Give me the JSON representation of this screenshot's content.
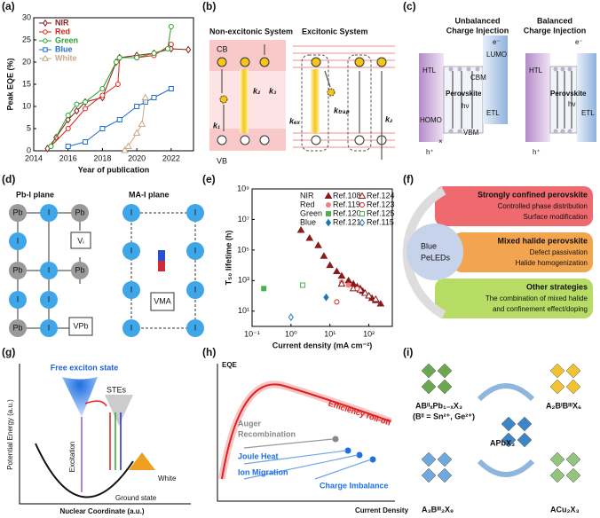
{
  "panel_labels": [
    "(a)",
    "(b)",
    "(c)",
    "(d)",
    "(e)",
    "(f)",
    "(g)",
    "(h)",
    "(i)"
  ],
  "chart_data": [
    {
      "type": "line",
      "xlabel": "Year of publication",
      "ylabel": "Peak EQE (%)",
      "xlim": [
        2014,
        2023.3
      ],
      "xticks": [
        2014,
        2016,
        2018,
        2020,
        2022
      ],
      "ylim": [
        0,
        30
      ],
      "yticks": [
        0,
        5,
        10,
        15,
        20,
        25,
        30
      ],
      "legend": "upper left",
      "series": [
        {
          "name": "NIR",
          "color": "#8b1a1a",
          "marker": "diamond",
          "filled": false,
          "x": [
            2014.8,
            2015.3,
            2016,
            2016.5,
            2017,
            2018,
            2018.8,
            2019,
            2020,
            2021,
            2022,
            2023
          ],
          "values": [
            0.5,
            3,
            7,
            9,
            11,
            12,
            20,
            21,
            21.5,
            22,
            23,
            22.8
          ]
        },
        {
          "name": "Red",
          "color": "#e0201b",
          "marker": "circle",
          "filled": false,
          "x": [
            2015,
            2016,
            2017,
            2018,
            2018.9,
            2019,
            2020,
            2021,
            2022
          ],
          "values": [
            1,
            5,
            9.5,
            12.5,
            15,
            21,
            21,
            21.5,
            24
          ]
        },
        {
          "name": "Green",
          "color": "#2ca02c",
          "marker": "circle",
          "filled": false,
          "x": [
            2015,
            2016,
            2016.5,
            2017,
            2018,
            2018.8,
            2019,
            2020,
            2021,
            2021.8,
            2022
          ],
          "values": [
            1,
            8,
            10.5,
            11,
            14,
            20,
            21,
            21,
            22,
            23,
            28
          ]
        },
        {
          "name": "Blue",
          "color": "#1f6fd1",
          "marker": "square",
          "filled": false,
          "x": [
            2016,
            2017,
            2018,
            2019,
            2020,
            2020.5,
            2021,
            2022
          ],
          "values": [
            1,
            2,
            5,
            7,
            10,
            11,
            12,
            14
          ]
        },
        {
          "name": "White",
          "color": "#c8a887",
          "marker": "triangle",
          "filled": false,
          "x": [
            2019.3,
            2019.5,
            2020,
            2020.3,
            2020.5
          ],
          "values": [
            0.1,
            1,
            4,
            6,
            12
          ]
        }
      ]
    },
    {
      "type": "scatter",
      "xlabel": "Current density (mA cm⁻²)",
      "ylabel": "T₅₀ lifetime (h)",
      "xlog": true,
      "ylog": true,
      "xlim": [
        0.1,
        400
      ],
      "xticks": [
        {
          "value": 0.1,
          "label": "10⁻¹"
        },
        {
          "value": 1,
          "label": "10⁰"
        },
        {
          "value": 10,
          "label": "10¹"
        },
        {
          "value": 100,
          "label": "10²"
        }
      ],
      "ylim": [
        1,
        1000000000
      ],
      "yticks": [
        {
          "value": 10,
          "label": "10¹"
        },
        {
          "value": 1000,
          "label": "10³"
        },
        {
          "value": 100000,
          "label": "10⁵"
        },
        {
          "value": 10000000,
          "label": "10⁷"
        },
        {
          "value": 1000000000,
          "label": "10⁹"
        }
      ],
      "legend": "upper right",
      "legend_groups": [
        "NIR",
        "Red",
        "Green",
        "Blue"
      ],
      "series": [
        {
          "name": "Ref.108",
          "color": "#8b1a1a",
          "marker": "triangle",
          "filled": true,
          "x": [
            1.8,
            3,
            5,
            7,
            10,
            15,
            20,
            30,
            40,
            50,
            60,
            70,
            80,
            100,
            120,
            150,
            200
          ],
          "values": [
            2000000,
            600000,
            200000,
            40000,
            10000,
            4000,
            2000,
            1000,
            600,
            400,
            300,
            200,
            150,
            100,
            70,
            50,
            30
          ]
        },
        {
          "name": "Ref.119",
          "color": "#f08080",
          "marker": "circle",
          "filled": true,
          "x": [
            20,
            30
          ],
          "values": [
            800,
            500
          ]
        },
        {
          "name": "Ref.120",
          "color": "#4caf50",
          "marker": "square",
          "filled": true,
          "x": [
            0.2
          ],
          "values": [
            300
          ]
        },
        {
          "name": "Ref.121",
          "color": "#1f77b4",
          "marker": "diamond",
          "filled": true,
          "x": [
            8
          ],
          "values": [
            80
          ]
        },
        {
          "name": "Ref.124",
          "color": "#8b1a1a",
          "marker": "triangle",
          "filled": false,
          "x": [
            20,
            40,
            60,
            80,
            100,
            150
          ],
          "values": [
            600,
            300,
            250,
            150,
            100,
            60
          ]
        },
        {
          "name": "Ref.123",
          "color": "#e0201b",
          "marker": "circle",
          "filled": false,
          "x": [
            15,
            50
          ],
          "values": [
            40,
            300
          ]
        },
        {
          "name": "Ref.125",
          "color": "#4caf50",
          "marker": "square",
          "filled": false,
          "x": [
            2
          ],
          "values": [
            500
          ]
        },
        {
          "name": "Ref.115",
          "color": "#1f77b4",
          "marker": "diamond",
          "filled": false,
          "x": [
            1
          ],
          "values": [
            4
          ]
        }
      ]
    }
  ],
  "panels": {
    "b": {
      "left_title": "Non-excitonic System",
      "right_title": "Excitonic System",
      "cb": "CB",
      "vb": "VB",
      "k1": "k₁",
      "k2": "k₂",
      "k3": "k₃",
      "kex": "kₑₓ",
      "ktrap": "kₜᵣₐₚ",
      "k2r": "k₂"
    },
    "c": {
      "title_left": [
        "Unbalanced",
        "Charge Injection"
      ],
      "title_right": [
        "Balanced",
        "Charge Injection"
      ],
      "htl": "HTL",
      "lumo": "LUMO",
      "cbm": "CBM",
      "e": "e⁻",
      "perovskite": "Perovskite",
      "hv": "hν",
      "homo": "HOMO",
      "vbm": "VBM",
      "etl": "ETL",
      "h": "h⁺",
      "x": "×",
      "htl2": "HTL",
      "e2": "e⁻",
      "perovskite2": "Perovskite",
      "hv2": "hν",
      "etl2": "ETL",
      "h2": "h⁺"
    },
    "d": {
      "left_title": "Pb-I plane",
      "right_title": "MA-I plane",
      "pb": [
        "Pb",
        "I",
        "Pb",
        "I",
        "Pb",
        "I",
        "Pb",
        "I",
        "I",
        "Pb",
        "I"
      ],
      "vi": "Vᵢ",
      "vpb": "VPb",
      "ma": [
        "I",
        "I",
        "I",
        "I",
        "I",
        "I",
        "I",
        "I"
      ],
      "vma": "VMA"
    },
    "f": {
      "s1": "Strongly confined perovskite",
      "s1a": "Controlled phase distribution",
      "s1b": "Surface modification",
      "s2": "Mixed halide perovskite",
      "s2a": "Defect passivation",
      "s2b": "Halide homogenization",
      "s3": "Other strategies",
      "s3a": "The combination of mixed halide",
      "s3b": "and confinement effect/doping",
      "center": [
        "Blue",
        "PeLEDs"
      ]
    },
    "g": {
      "free": "Free exciton state",
      "stes": "STEs",
      "excitation": "Excitation",
      "white": "White",
      "ground": "Ground state",
      "ylabel": "Potential Energy (a.u.)",
      "xlabel": "Nuclear Coordinate (a.u.)"
    },
    "h": {
      "ylabel": "EQE",
      "rolloff": "Efficiency roll-off",
      "auger": [
        "Auger",
        "Recombination"
      ],
      "joule": "Joule Heat",
      "ion": "Ion Migration",
      "charge": "Charge Imbalance",
      "xlabel": "Current Density"
    },
    "i": {
      "tl": "ABᴵᴵₓPb₁₋ₓX₃",
      "tl2": "(Bᴵᴵ = Sn²⁺, Ge²⁺)",
      "tr": "A₂BᴵBᴵᴵᴵX₆",
      "center": "APbX₃",
      "bl": "A₃Bᴵᴵᴵ₂X₉",
      "br": "ACu₂X₃"
    }
  }
}
